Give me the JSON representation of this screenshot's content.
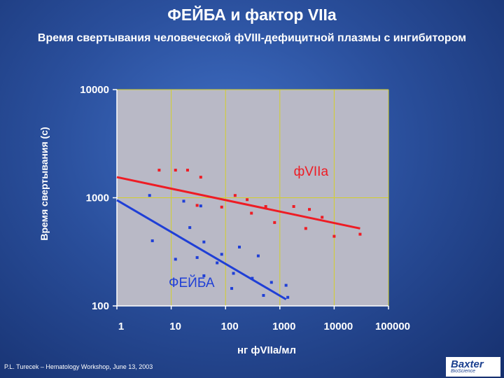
{
  "slide": {
    "title": "ФЕЙБА и фактор VIIa",
    "subtitle": "Время свертывания человеческой фVIII-дефицитной плазмы с ингибитором",
    "footer": "P.L. Turecek – Hematology Workshop, June 13, 2003",
    "logo_main": "Baxter",
    "logo_sub": "BioScience"
  },
  "colors": {
    "plot_bg": "#b9b9c6",
    "grid": "#d4cf2a",
    "fviia": "#ee1c24",
    "feiba": "#1f3fd6",
    "axis_text": "#ffffff"
  },
  "chart_data": {
    "type": "scatter",
    "xlabel": "нг фVIIa/мл",
    "ylabel": "Время свертывания (с)",
    "x_scale": "log",
    "y_scale": "log",
    "xlim": [
      1,
      100000
    ],
    "ylim": [
      100,
      10000
    ],
    "x_ticks": [
      1,
      10,
      100,
      1000,
      10000,
      100000
    ],
    "x_tick_labels": [
      "1",
      "10",
      "100",
      "1000",
      "10000",
      "100000"
    ],
    "y_ticks": [
      100,
      1000,
      10000
    ],
    "y_tick_labels": [
      "100",
      "1000",
      "10000"
    ],
    "grid": true,
    "series": [
      {
        "name": "фVIIa",
        "color": "#ee1c24",
        "label_position": [
          1800,
          1600
        ],
        "points": [
          [
            6,
            1800
          ],
          [
            12,
            1800
          ],
          [
            20,
            1800
          ],
          [
            35,
            1550
          ],
          [
            30,
            850
          ],
          [
            85,
            820
          ],
          [
            150,
            1050
          ],
          [
            250,
            960
          ],
          [
            300,
            720
          ],
          [
            550,
            830
          ],
          [
            800,
            590
          ],
          [
            1800,
            830
          ],
          [
            3000,
            520
          ],
          [
            3500,
            780
          ],
          [
            6000,
            660
          ],
          [
            10000,
            440
          ],
          [
            30000,
            460
          ]
        ],
        "trend": [
          [
            1,
            1550
          ],
          [
            30000,
            520
          ]
        ]
      },
      {
        "name": "ФЕЙБА",
        "color": "#1f3fd6",
        "label_position": [
          9,
          150
        ],
        "points": [
          [
            4,
            1050
          ],
          [
            4.5,
            400
          ],
          [
            12,
            270
          ],
          [
            17,
            930
          ],
          [
            22,
            530
          ],
          [
            35,
            840
          ],
          [
            30,
            280
          ],
          [
            40,
            390
          ],
          [
            40,
            190
          ],
          [
            70,
            250
          ],
          [
            85,
            300
          ],
          [
            130,
            145
          ],
          [
            140,
            200
          ],
          [
            180,
            350
          ],
          [
            310,
            180
          ],
          [
            400,
            290
          ],
          [
            500,
            125
          ],
          [
            700,
            165
          ],
          [
            1300,
            155
          ],
          [
            1400,
            120
          ]
        ],
        "trend": [
          [
            1,
            950
          ],
          [
            1300,
            115
          ]
        ]
      }
    ]
  }
}
